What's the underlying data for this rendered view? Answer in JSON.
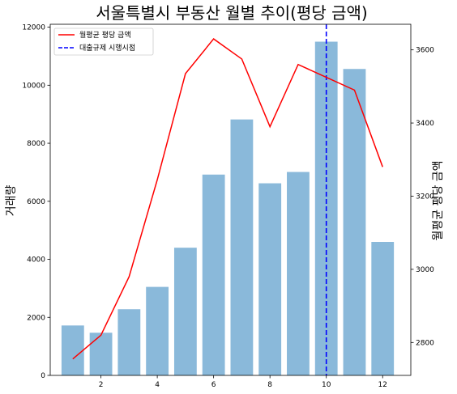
{
  "chart_data": {
    "type": "bar",
    "title": "서울특별시 부동산 월별 추이(평당 금액)",
    "x": [
      1,
      2,
      3,
      4,
      5,
      6,
      7,
      8,
      9,
      10,
      11,
      12
    ],
    "x_ticks": [
      "2",
      "4",
      "6",
      "8",
      "10",
      "12"
    ],
    "xlim": [
      0.2,
      13.0
    ],
    "left_axis": {
      "label": "거래량",
      "ylim": [
        0,
        12100
      ],
      "ticks": [
        "0",
        "2000",
        "4000",
        "6000",
        "8000",
        "10000",
        "12000"
      ]
    },
    "right_axis": {
      "label": "월평균 평당 금액",
      "ylim": [
        2710,
        3670
      ],
      "ticks": [
        "2800",
        "3000",
        "3200",
        "3400",
        "3600"
      ]
    },
    "series": [
      {
        "type": "bar",
        "axis": "left",
        "values": [
          1720,
          1470,
          2280,
          3050,
          4400,
          6920,
          8820,
          6620,
          7010,
          11500,
          10560,
          4600
        ],
        "color": "#8ab9da"
      },
      {
        "type": "line",
        "axis": "right",
        "name": "월평균 평당 금액",
        "values": [
          2755,
          2820,
          2980,
          3245,
          3535,
          3630,
          3575,
          3390,
          3560,
          3525,
          3490,
          3280
        ],
        "color": "#ff0000"
      }
    ],
    "vline": {
      "name": "대출규제 시행시점",
      "x": 10,
      "color": "#0000ff",
      "style": "dashed"
    },
    "legend": {
      "placement": "top-left",
      "entries": [
        "월평균 평당 금액",
        "대출규제 시행시점"
      ]
    }
  }
}
